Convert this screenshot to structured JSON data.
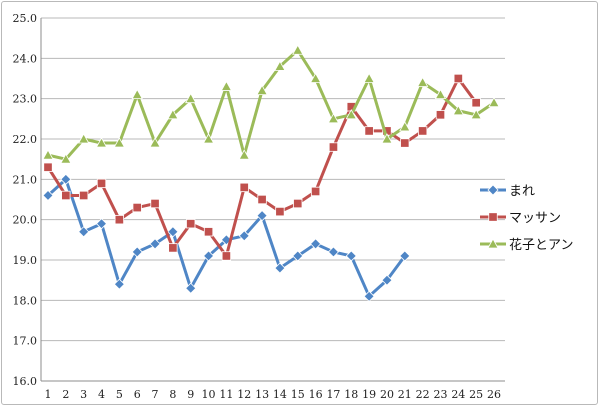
{
  "chart_data": {
    "type": "line",
    "title": "",
    "xlabel": "",
    "ylabel": "",
    "x": [
      1,
      2,
      3,
      4,
      5,
      6,
      7,
      8,
      9,
      10,
      11,
      12,
      13,
      14,
      15,
      16,
      17,
      18,
      19,
      20,
      21,
      22,
      23,
      24,
      25,
      26
    ],
    "ylim": [
      16.0,
      25.0
    ],
    "yticks": [
      "16.0",
      "17.0",
      "18.0",
      "19.0",
      "20.0",
      "21.0",
      "22.0",
      "23.0",
      "24.0",
      "25.0"
    ],
    "grid": "horizontal",
    "legend_position": "right",
    "series": [
      {
        "name": "まれ",
        "marker": "diamond",
        "color": "#4f86c6",
        "values": [
          20.6,
          21.0,
          19.7,
          19.9,
          18.4,
          19.2,
          19.4,
          19.7,
          18.3,
          19.1,
          19.5,
          19.6,
          20.1,
          18.8,
          19.1,
          19.4,
          19.2,
          19.1,
          18.1,
          18.5,
          19.1,
          null,
          null,
          null,
          null,
          null
        ]
      },
      {
        "name": "マッサン",
        "marker": "square",
        "color": "#c0504d",
        "values": [
          21.3,
          20.6,
          20.6,
          20.9,
          20.0,
          20.3,
          20.4,
          19.3,
          19.9,
          19.7,
          19.1,
          20.8,
          20.5,
          20.2,
          20.4,
          20.7,
          21.8,
          22.8,
          22.2,
          22.2,
          21.9,
          22.2,
          22.6,
          23.5,
          22.9,
          null
        ]
      },
      {
        "name": "花子とアン",
        "marker": "triangle",
        "color": "#9bbb59",
        "values": [
          21.6,
          21.5,
          22.0,
          21.9,
          21.9,
          23.1,
          21.9,
          22.6,
          23.0,
          22.0,
          23.3,
          21.6,
          23.2,
          23.8,
          24.2,
          23.5,
          22.5,
          22.6,
          23.5,
          22.0,
          22.3,
          23.4,
          23.1,
          22.7,
          22.6,
          22.9
        ]
      }
    ]
  }
}
